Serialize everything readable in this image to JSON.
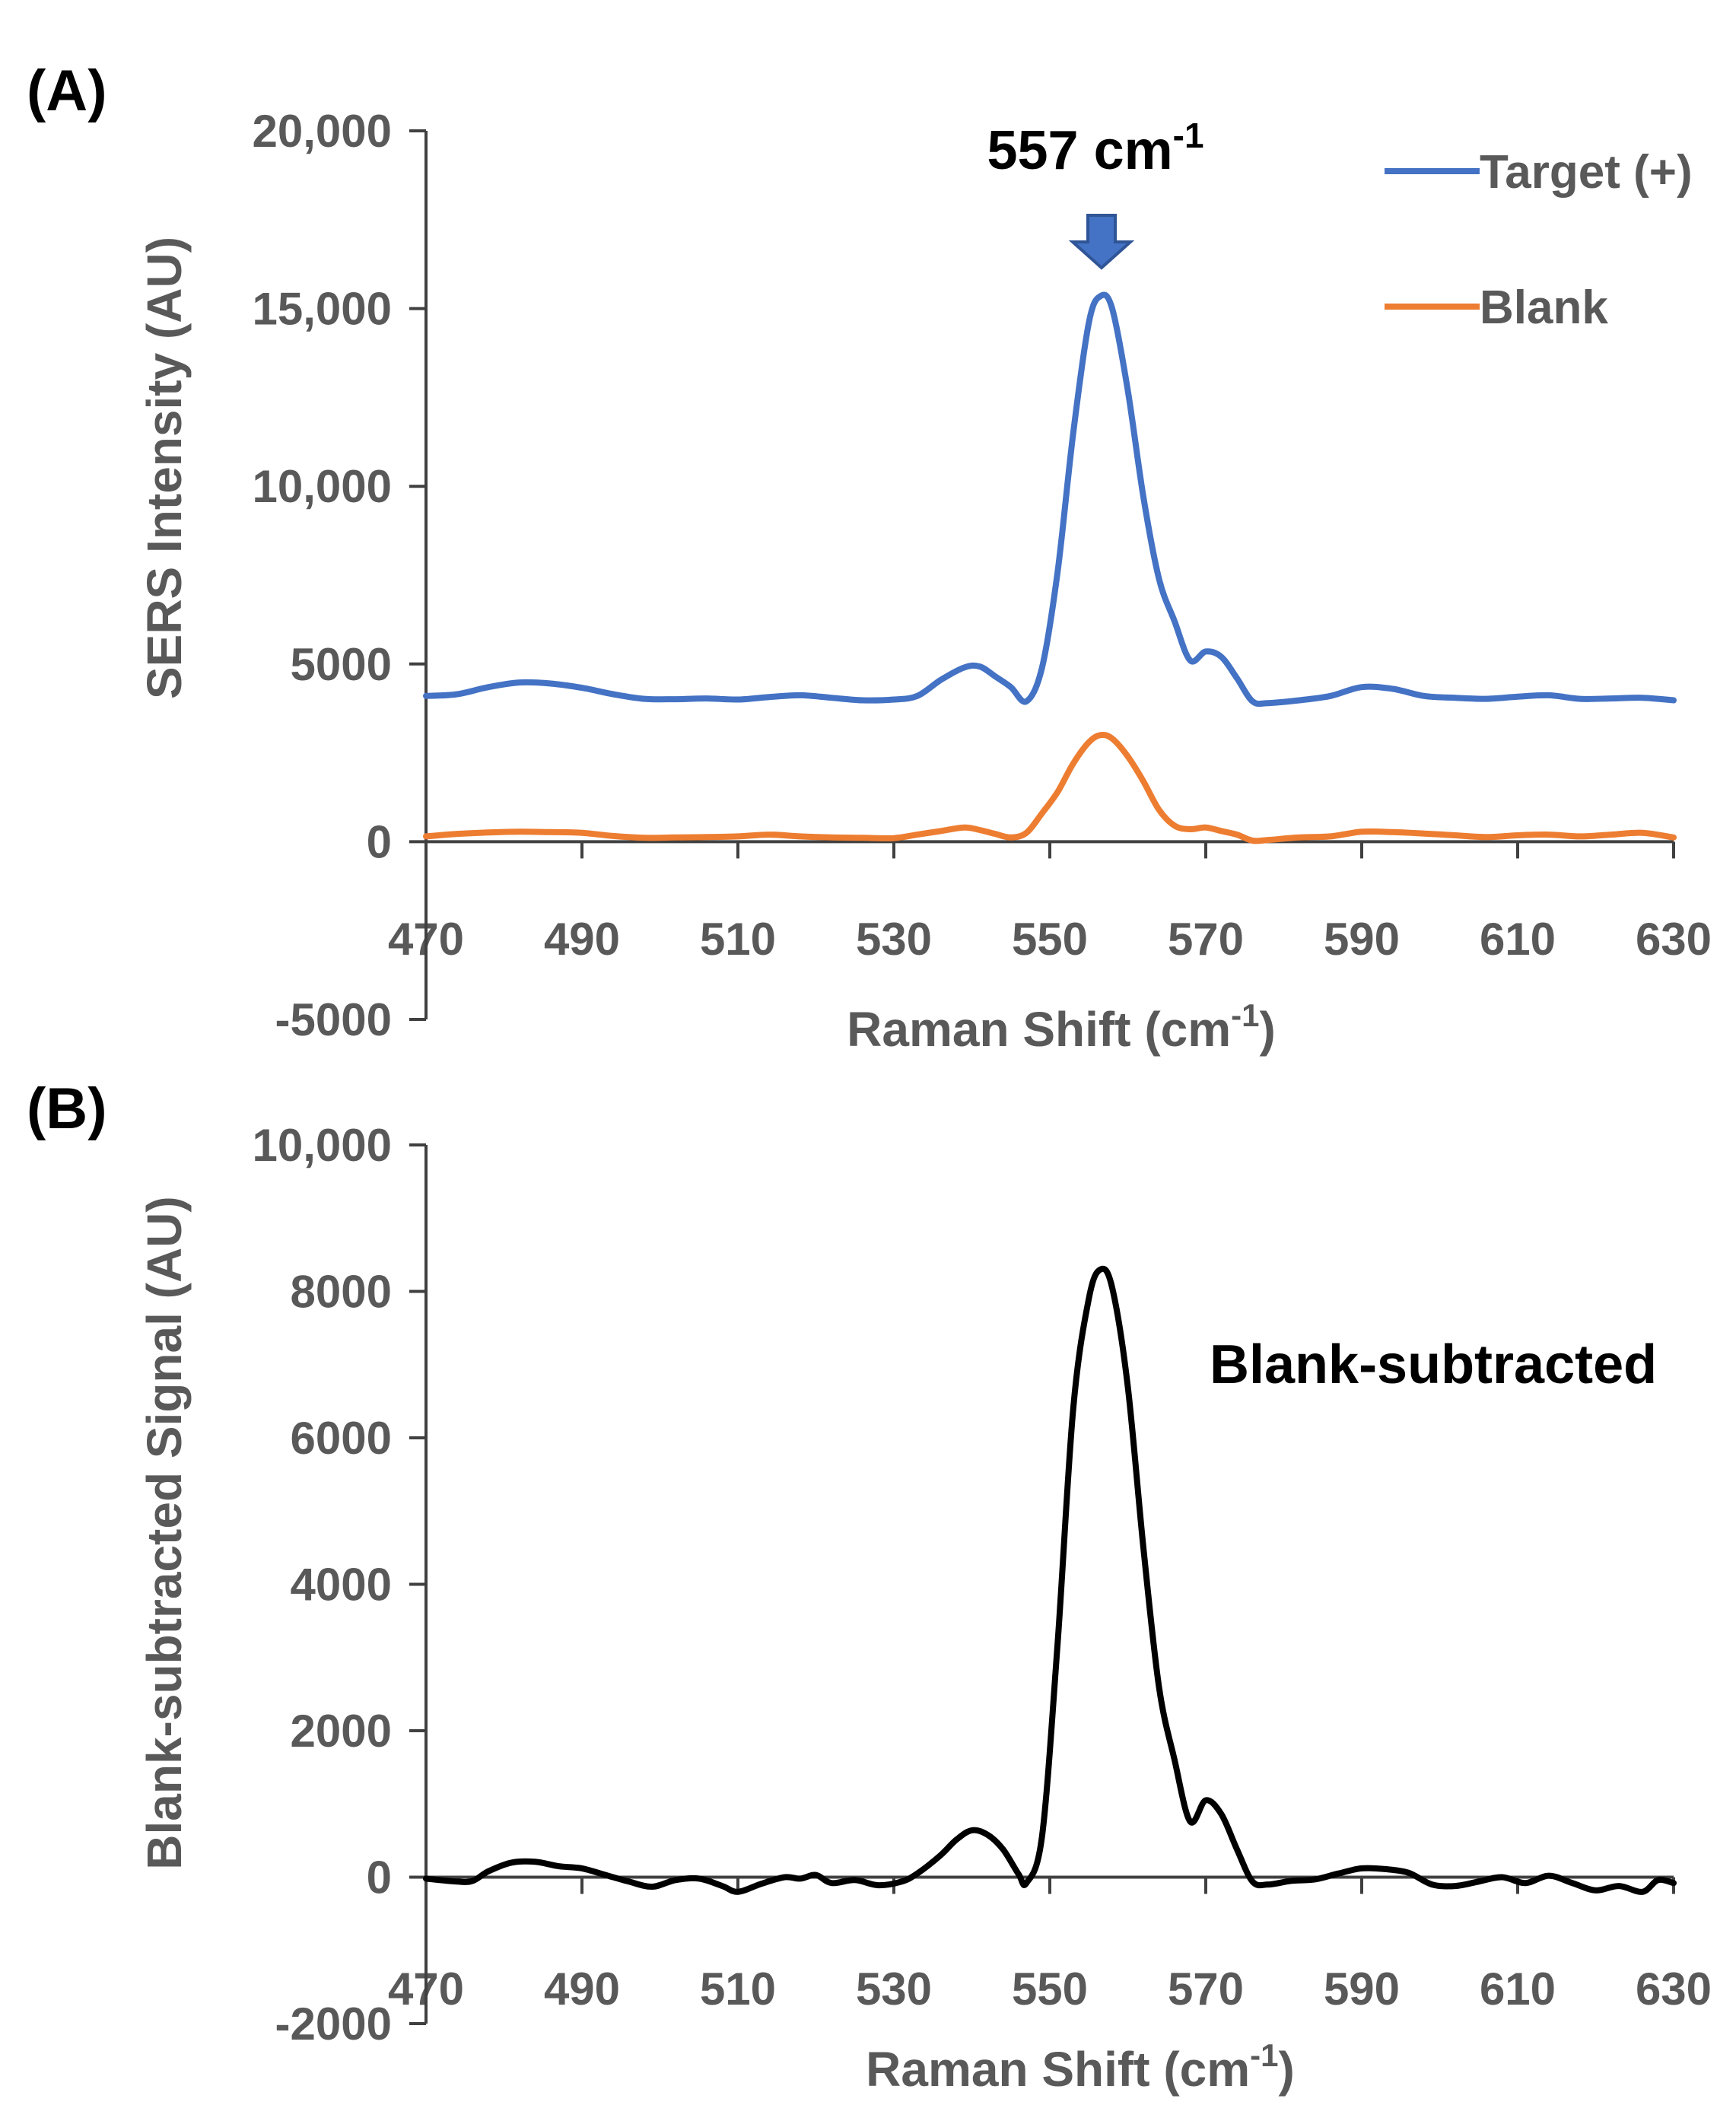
{
  "chart_data": [
    {
      "panel_label": "(A)",
      "type": "line",
      "xlabel": "Raman Shift (cm",
      "xlabel_sup": "-1",
      "xlabel_end": ")",
      "ylabel": "SERS Intensity (AU)",
      "xlim": [
        470,
        630
      ],
      "ylim": [
        -5000,
        20000
      ],
      "x_ticks": [
        470,
        490,
        510,
        530,
        550,
        570,
        590,
        610,
        630
      ],
      "x_tick_labels": [
        "470",
        "490",
        "510",
        "530",
        "550",
        "570",
        "590",
        "610",
        "630"
      ],
      "y_ticks": [
        -5000,
        0,
        5000,
        10000,
        15000,
        20000
      ],
      "y_tick_labels": [
        "-5000",
        "0",
        "5000",
        "10,000",
        "15,000",
        "20,000"
      ],
      "grid": false,
      "legend_position": "top-right",
      "annotation": {
        "text": "557 cm",
        "sup": "-1",
        "x": 557,
        "arrow": true
      },
      "series": [
        {
          "name": "Target (+)",
          "color": "#4472C4",
          "points": [
            [
              470,
              4100
            ],
            [
              474,
              4150
            ],
            [
              478,
              4350
            ],
            [
              482,
              4480
            ],
            [
              486,
              4450
            ],
            [
              490,
              4330
            ],
            [
              494,
              4150
            ],
            [
              498,
              4020
            ],
            [
              502,
              4010
            ],
            [
              506,
              4030
            ],
            [
              510,
              4000
            ],
            [
              514,
              4070
            ],
            [
              518,
              4120
            ],
            [
              522,
              4050
            ],
            [
              526,
              3980
            ],
            [
              530,
              4000
            ],
            [
              533,
              4100
            ],
            [
              536,
              4550
            ],
            [
              539,
              4900
            ],
            [
              541,
              4930
            ],
            [
              543,
              4650
            ],
            [
              545,
              4350
            ],
            [
              547,
              3950
            ],
            [
              549,
              4900
            ],
            [
              551,
              7600
            ],
            [
              553,
              11500
            ],
            [
              555,
              14600
            ],
            [
              556.5,
              15350
            ],
            [
              558,
              15000
            ],
            [
              560,
              12700
            ],
            [
              562,
              9700
            ],
            [
              564,
              7400
            ],
            [
              566,
              6200
            ],
            [
              568,
              5100
            ],
            [
              570,
              5350
            ],
            [
              572,
              5200
            ],
            [
              574,
              4600
            ],
            [
              576,
              3950
            ],
            [
              578,
              3900
            ],
            [
              582,
              3980
            ],
            [
              586,
              4100
            ],
            [
              590,
              4350
            ],
            [
              594,
              4300
            ],
            [
              598,
              4100
            ],
            [
              602,
              4050
            ],
            [
              606,
              4020
            ],
            [
              610,
              4080
            ],
            [
              614,
              4120
            ],
            [
              618,
              4020
            ],
            [
              622,
              4030
            ],
            [
              626,
              4050
            ],
            [
              630,
              3980
            ]
          ]
        },
        {
          "name": "Blank",
          "color": "#ED7D31",
          "points": [
            [
              470,
              150
            ],
            [
              474,
              220
            ],
            [
              478,
              260
            ],
            [
              482,
              280
            ],
            [
              486,
              270
            ],
            [
              490,
              250
            ],
            [
              494,
              160
            ],
            [
              498,
              110
            ],
            [
              502,
              120
            ],
            [
              506,
              130
            ],
            [
              510,
              150
            ],
            [
              514,
              200
            ],
            [
              518,
              150
            ],
            [
              522,
              120
            ],
            [
              526,
              110
            ],
            [
              530,
              100
            ],
            [
              533,
              200
            ],
            [
              536,
              300
            ],
            [
              539,
              400
            ],
            [
              541,
              330
            ],
            [
              543,
              220
            ],
            [
              545,
              120
            ],
            [
              547,
              250
            ],
            [
              549,
              800
            ],
            [
              551,
              1400
            ],
            [
              553,
              2200
            ],
            [
              555,
              2800
            ],
            [
              556.5,
              3000
            ],
            [
              558,
              2900
            ],
            [
              560,
              2400
            ],
            [
              562,
              1700
            ],
            [
              564,
              900
            ],
            [
              566,
              450
            ],
            [
              568,
              350
            ],
            [
              570,
              400
            ],
            [
              572,
              300
            ],
            [
              574,
              200
            ],
            [
              576,
              30
            ],
            [
              578,
              50
            ],
            [
              582,
              120
            ],
            [
              586,
              150
            ],
            [
              590,
              280
            ],
            [
              594,
              270
            ],
            [
              598,
              230
            ],
            [
              602,
              180
            ],
            [
              606,
              130
            ],
            [
              610,
              180
            ],
            [
              614,
              200
            ],
            [
              618,
              150
            ],
            [
              622,
              200
            ],
            [
              626,
              250
            ],
            [
              630,
              120
            ]
          ]
        }
      ]
    },
    {
      "panel_label": "(B)",
      "type": "line",
      "xlabel": "Raman Shift (cm",
      "xlabel_sup": "-1",
      "xlabel_end": ")",
      "ylabel": "Blank-subtracted Signal (AU)",
      "xlim": [
        470,
        630
      ],
      "ylim": [
        -2000,
        10000
      ],
      "x_ticks": [
        470,
        490,
        510,
        530,
        550,
        570,
        590,
        610,
        630
      ],
      "x_tick_labels": [
        "470",
        "490",
        "510",
        "530",
        "550",
        "570",
        "590",
        "610",
        "630"
      ],
      "y_ticks": [
        -2000,
        0,
        2000,
        4000,
        6000,
        8000,
        10000
      ],
      "y_tick_labels": [
        "-2000",
        "0",
        "2000",
        "4000",
        "6000",
        "8000",
        "10,000"
      ],
      "grid": false,
      "annotation": {
        "text": "Blank-subtracted"
      },
      "series": [
        {
          "name": "Blank-subtracted",
          "color": "#000000",
          "points": [
            [
              470,
              -20
            ],
            [
              474,
              -60
            ],
            [
              476,
              -50
            ],
            [
              478,
              80
            ],
            [
              481,
              200
            ],
            [
              484,
              210
            ],
            [
              487,
              150
            ],
            [
              490,
              120
            ],
            [
              493,
              30
            ],
            [
              496,
              -60
            ],
            [
              499,
              -130
            ],
            [
              502,
              -40
            ],
            [
              505,
              -20
            ],
            [
              508,
              -120
            ],
            [
              510,
              -200
            ],
            [
              513,
              -90
            ],
            [
              516,
              0
            ],
            [
              518,
              -20
            ],
            [
              520,
              30
            ],
            [
              522,
              -80
            ],
            [
              525,
              -40
            ],
            [
              528,
              -110
            ],
            [
              531,
              -60
            ],
            [
              533,
              50
            ],
            [
              536,
              300
            ],
            [
              538,
              510
            ],
            [
              540,
              640
            ],
            [
              542,
              580
            ],
            [
              544,
              380
            ],
            [
              546,
              40
            ],
            [
              547,
              -80
            ],
            [
              549,
              560
            ],
            [
              551,
              3200
            ],
            [
              553,
              6400
            ],
            [
              555,
              7900
            ],
            [
              556.5,
              8300
            ],
            [
              558,
              8050
            ],
            [
              560,
              6700
            ],
            [
              562,
              4500
            ],
            [
              564,
              2600
            ],
            [
              566,
              1600
            ],
            [
              568,
              760
            ],
            [
              570,
              1050
            ],
            [
              572,
              860
            ],
            [
              574,
              380
            ],
            [
              576,
              -60
            ],
            [
              578,
              -100
            ],
            [
              581,
              -50
            ],
            [
              584,
              -30
            ],
            [
              587,
              50
            ],
            [
              590,
              120
            ],
            [
              593,
              110
            ],
            [
              596,
              60
            ],
            [
              599,
              -100
            ],
            [
              602,
              -120
            ],
            [
              605,
              -60
            ],
            [
              608,
              0
            ],
            [
              611,
              -80
            ],
            [
              614,
              20
            ],
            [
              617,
              -80
            ],
            [
              620,
              -180
            ],
            [
              623,
              -120
            ],
            [
              626,
              -200
            ],
            [
              628,
              -40
            ],
            [
              630,
              -80
            ]
          ]
        }
      ]
    }
  ]
}
